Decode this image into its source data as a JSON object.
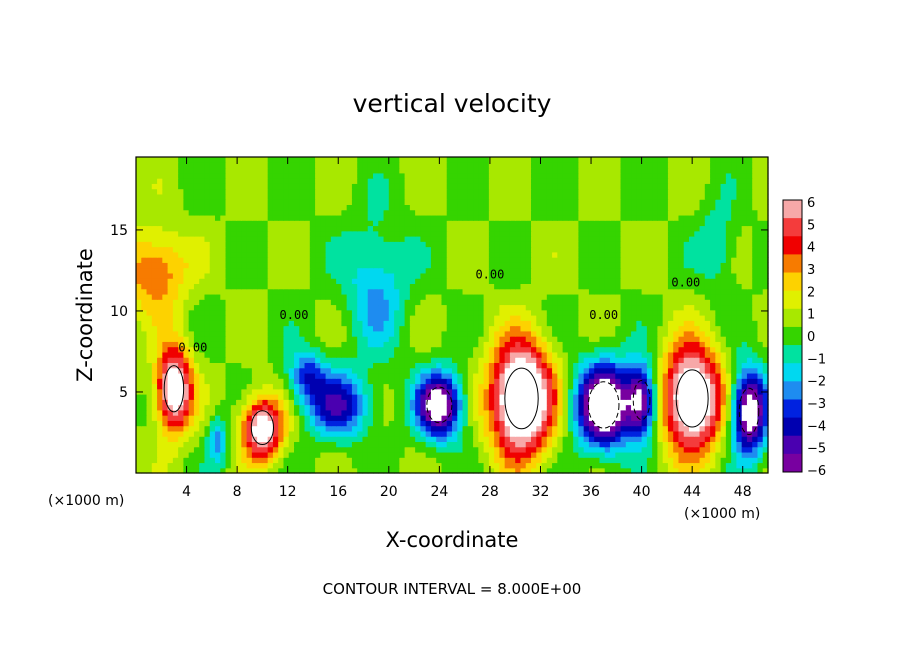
{
  "chart_data": {
    "type": "heatmap",
    "title": "vertical velocity",
    "xlabel": "X-coordinate",
    "ylabel": "Z-coordinate",
    "x_unit_left": "(×1000 m)",
    "x_unit_right": "(×1000 m)",
    "xlim": [
      0,
      50
    ],
    "ylim": [
      0,
      19.5
    ],
    "xticks": [
      4,
      8,
      12,
      16,
      20,
      24,
      28,
      32,
      36,
      40,
      44,
      48
    ],
    "yticks": [
      5,
      10,
      15
    ],
    "colorbar": {
      "min": -6,
      "max": 6,
      "ticks": [
        "6",
        "5",
        "4",
        "3",
        "2",
        "1",
        "0",
        "−1",
        "−2",
        "−3",
        "−4",
        "−5",
        "−6"
      ],
      "colors": [
        "#f7a8a8",
        "#f43c3c",
        "#f00000",
        "#f77b00",
        "#fdd200",
        "#e0f000",
        "#a8e800",
        "#35d400",
        "#00e2a0",
        "#00d8f0",
        "#1e8cf0",
        "#0022e0",
        "#0000b0",
        "#4a00b0",
        "#7800a0"
      ]
    },
    "features": [
      {
        "x": 3,
        "z": 5.2,
        "amp": 7.5,
        "sx": 1.4,
        "sz": 2.6
      },
      {
        "x": 10,
        "z": 2.8,
        "amp": 7.0,
        "sx": 1.6,
        "sz": 1.9
      },
      {
        "x": 30.5,
        "z": 4.6,
        "amp": 9.5,
        "sx": 2.4,
        "sz": 3.4
      },
      {
        "x": 44,
        "z": 4.6,
        "amp": 8.5,
        "sx": 2.3,
        "sz": 3.2
      },
      {
        "x": 1.5,
        "z": 12.5,
        "amp": 3.5,
        "sx": 2.5,
        "sz": 2.5
      },
      {
        "x": 37,
        "z": 4.2,
        "amp": -8.5,
        "sx": 2.2,
        "sz": 2.6
      },
      {
        "x": 40,
        "z": 4.5,
        "amp": -6.5,
        "sx": 1.2,
        "sz": 2.2
      },
      {
        "x": 48.5,
        "z": 3.8,
        "amp": -8.0,
        "sx": 1.4,
        "sz": 2.6
      },
      {
        "x": 24,
        "z": 4.2,
        "amp": -7.5,
        "sx": 1.8,
        "sz": 2.0
      },
      {
        "x": 16,
        "z": 4.2,
        "amp": -4.5,
        "sx": 2.5,
        "sz": 2.0
      },
      {
        "x": 13.5,
        "z": 6.0,
        "amp": -3.5,
        "sx": 1.5,
        "sz": 1.6
      },
      {
        "x": 19,
        "z": 11.5,
        "amp": -2.5,
        "sx": 2.5,
        "sz": 4.0
      },
      {
        "x": 6.5,
        "z": 2.0,
        "amp": -2.8,
        "sx": 0.8,
        "sz": 1.5
      },
      {
        "x": 46,
        "z": 14,
        "amp": -1.8,
        "sx": 1.5,
        "sz": 2.5
      }
    ],
    "contour_labels": [
      "0.00",
      "0.00",
      "0.00",
      "0.00",
      "0.00"
    ],
    "footer": "CONTOUR INTERVAL = 8.000E+00"
  }
}
